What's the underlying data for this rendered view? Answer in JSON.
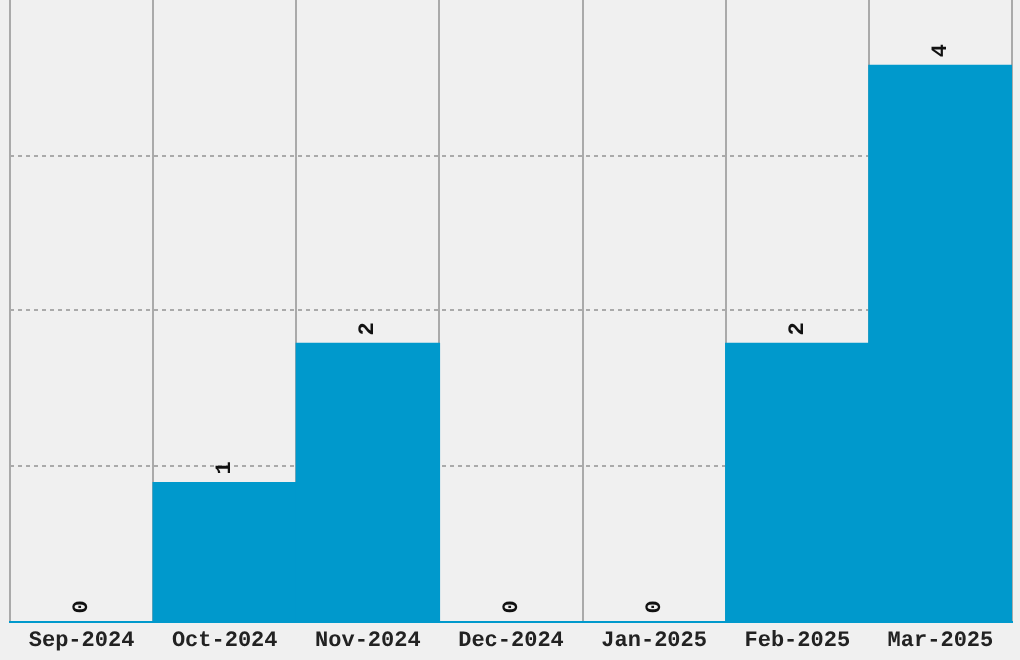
{
  "chart_data": {
    "type": "bar",
    "categories": [
      "Sep-2024",
      "Oct-2024",
      "Nov-2024",
      "Dec-2024",
      "Jan-2025",
      "Feb-2025",
      "Mar-2025"
    ],
    "values": [
      0,
      1,
      2,
      0,
      0,
      2,
      4
    ],
    "color": "#0099cc",
    "ylim": [
      0,
      4.47
    ],
    "yticks": [
      {
        "value": 0,
        "label": null
      },
      {
        "value": 1.12,
        "label": null
      },
      {
        "value": 2.24,
        "label": null
      },
      {
        "value": 3.35,
        "label": null
      }
    ],
    "tick_labels": "x",
    "grid": true,
    "data_labels": true
  }
}
